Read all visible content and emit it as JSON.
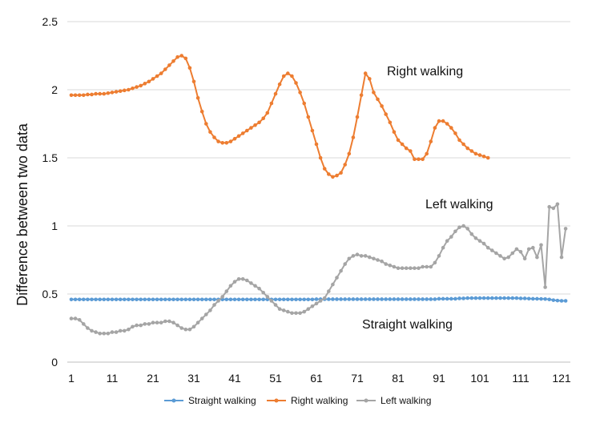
{
  "chart_data": {
    "type": "line",
    "title": "",
    "xlabel": "",
    "ylabel": "Difference between two data",
    "ylim": [
      0,
      2.5
    ],
    "yticks": [
      "0",
      "0.5",
      "1",
      "1.5",
      "2",
      "2.5"
    ],
    "ytick_values": [
      0,
      0.5,
      1,
      1.5,
      2,
      2.5
    ],
    "xticks": [
      "1",
      "11",
      "21",
      "31",
      "41",
      "51",
      "61",
      "71",
      "81",
      "91",
      "101",
      "111",
      "121"
    ],
    "xtick_values": [
      1,
      11,
      21,
      31,
      41,
      51,
      61,
      71,
      81,
      91,
      101,
      111,
      121
    ],
    "grid": true,
    "legend_position": "bottom",
    "annotations": [
      {
        "text": "Right walking",
        "series": "Right walking"
      },
      {
        "text": "Left walking",
        "series": "Left walking"
      },
      {
        "text": "Straight walking",
        "series": "Straight walking"
      }
    ],
    "series": [
      {
        "name": "Straight walking",
        "color": "#5b9bd5",
        "values": [
          0.46,
          0.46,
          0.46,
          0.46,
          0.46,
          0.46,
          0.46,
          0.46,
          0.46,
          0.46,
          0.46,
          0.46,
          0.46,
          0.46,
          0.46,
          0.46,
          0.46,
          0.46,
          0.46,
          0.46,
          0.46,
          0.46,
          0.46,
          0.46,
          0.46,
          0.46,
          0.46,
          0.46,
          0.46,
          0.46,
          0.46,
          0.46,
          0.46,
          0.46,
          0.46,
          0.46,
          0.46,
          0.46,
          0.46,
          0.46,
          0.46,
          0.46,
          0.46,
          0.46,
          0.46,
          0.46,
          0.46,
          0.46,
          0.46,
          0.46,
          0.46,
          0.46,
          0.46,
          0.46,
          0.46,
          0.46,
          0.46,
          0.46,
          0.46,
          0.46,
          0.462,
          0.462,
          0.462,
          0.462,
          0.462,
          0.462,
          0.462,
          0.462,
          0.462,
          0.462,
          0.462,
          0.462,
          0.462,
          0.462,
          0.462,
          0.462,
          0.462,
          0.462,
          0.462,
          0.462,
          0.462,
          0.462,
          0.462,
          0.462,
          0.462,
          0.462,
          0.462,
          0.462,
          0.462,
          0.462,
          0.465,
          0.465,
          0.465,
          0.465,
          0.465,
          0.468,
          0.468,
          0.47,
          0.47,
          0.47,
          0.47,
          0.47,
          0.47,
          0.47,
          0.47,
          0.47,
          0.47,
          0.47,
          0.47,
          0.47,
          0.468,
          0.468,
          0.466,
          0.465,
          0.465,
          0.464,
          0.463,
          0.46,
          0.455,
          0.452,
          0.45,
          0.45
        ]
      },
      {
        "name": "Right walking",
        "color": "#ed7d31",
        "values": [
          1.96,
          1.96,
          1.96,
          1.96,
          1.965,
          1.965,
          1.97,
          1.97,
          1.97,
          1.975,
          1.98,
          1.985,
          1.99,
          1.995,
          2.0,
          2.01,
          2.02,
          2.03,
          2.045,
          2.06,
          2.08,
          2.1,
          2.12,
          2.15,
          2.18,
          2.21,
          2.24,
          2.25,
          2.23,
          2.16,
          2.06,
          1.94,
          1.84,
          1.75,
          1.69,
          1.65,
          1.62,
          1.61,
          1.61,
          1.62,
          1.64,
          1.66,
          1.68,
          1.7,
          1.72,
          1.74,
          1.76,
          1.79,
          1.83,
          1.9,
          1.97,
          2.04,
          2.1,
          2.12,
          2.1,
          2.05,
          1.98,
          1.9,
          1.8,
          1.7,
          1.6,
          1.5,
          1.42,
          1.38,
          1.36,
          1.37,
          1.39,
          1.45,
          1.53,
          1.65,
          1.8,
          1.96,
          2.12,
          2.08,
          1.98,
          1.93,
          1.88,
          1.82,
          1.76,
          1.69,
          1.63,
          1.6,
          1.57,
          1.55,
          1.49,
          1.49,
          1.49,
          1.53,
          1.62,
          1.72,
          1.77,
          1.77,
          1.75,
          1.72,
          1.68,
          1.63,
          1.6,
          1.57,
          1.55,
          1.53,
          1.52,
          1.51,
          1.5
        ]
      },
      {
        "name": "Left walking",
        "color": "#a5a5a5",
        "values": [
          0.32,
          0.32,
          0.31,
          0.28,
          0.25,
          0.23,
          0.22,
          0.21,
          0.21,
          0.21,
          0.22,
          0.22,
          0.23,
          0.23,
          0.24,
          0.26,
          0.27,
          0.27,
          0.28,
          0.28,
          0.29,
          0.29,
          0.29,
          0.3,
          0.3,
          0.29,
          0.27,
          0.25,
          0.24,
          0.24,
          0.26,
          0.29,
          0.32,
          0.35,
          0.38,
          0.42,
          0.45,
          0.48,
          0.52,
          0.56,
          0.59,
          0.61,
          0.61,
          0.6,
          0.58,
          0.56,
          0.54,
          0.51,
          0.48,
          0.45,
          0.42,
          0.39,
          0.38,
          0.37,
          0.36,
          0.36,
          0.36,
          0.37,
          0.39,
          0.41,
          0.43,
          0.45,
          0.47,
          0.52,
          0.57,
          0.62,
          0.67,
          0.72,
          0.76,
          0.78,
          0.79,
          0.78,
          0.78,
          0.77,
          0.76,
          0.75,
          0.74,
          0.72,
          0.71,
          0.7,
          0.69,
          0.69,
          0.69,
          0.69,
          0.69,
          0.69,
          0.7,
          0.7,
          0.7,
          0.73,
          0.78,
          0.84,
          0.89,
          0.92,
          0.96,
          0.99,
          1.0,
          0.98,
          0.94,
          0.91,
          0.89,
          0.87,
          0.84,
          0.82,
          0.8,
          0.78,
          0.76,
          0.77,
          0.8,
          0.83,
          0.81,
          0.76,
          0.83,
          0.84,
          0.77,
          0.86,
          0.55,
          1.14,
          1.13,
          1.16,
          0.77,
          0.98
        ]
      }
    ]
  }
}
